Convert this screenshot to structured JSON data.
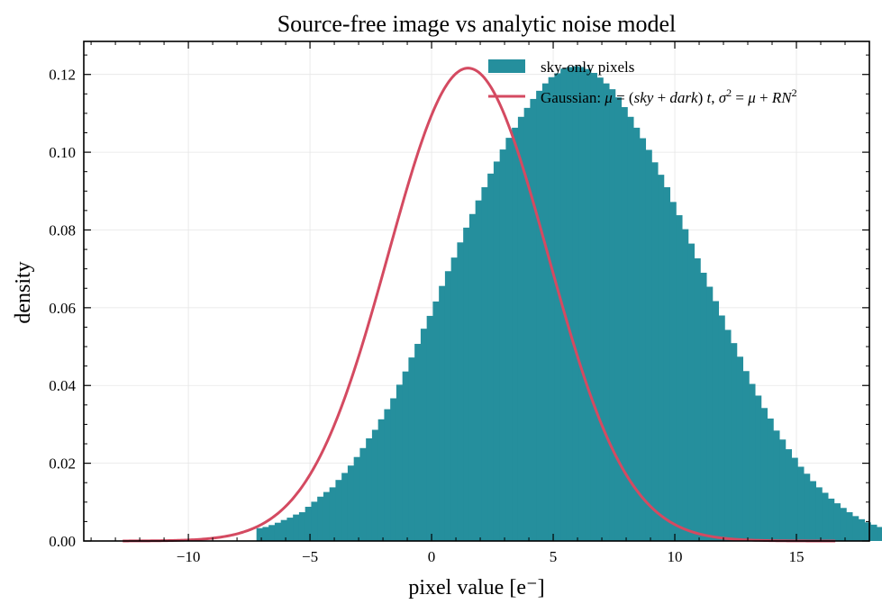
{
  "chart_data": {
    "type": "bar",
    "title": "Source-free image vs analytic noise model",
    "xlabel": "pixel value [e⁻]",
    "ylabel": "density",
    "xlim": [
      -14.3,
      18.0
    ],
    "ylim": [
      0,
      0.1285
    ],
    "xticks": [
      -10,
      -5,
      0,
      5,
      10,
      15
    ],
    "xtick_labels": [
      "−10",
      "−5",
      "0",
      "5",
      "10",
      "15"
    ],
    "yticks": [
      0.0,
      0.02,
      0.04,
      0.06,
      0.08,
      0.1,
      0.12
    ],
    "ytick_labels": [
      "0.00",
      "0.02",
      "0.04",
      "0.06",
      "0.08",
      "0.10",
      "0.12"
    ],
    "grid": true,
    "legend_position": "top-right",
    "colors": {
      "histogram": "#258f9d",
      "curve": "#d44a61"
    },
    "series": [
      {
        "name": "sky-only pixels",
        "kind": "histogram",
        "bin_start": -7.2,
        "bin_width": 0.25,
        "values": [
          0.0033,
          0.0036,
          0.0041,
          0.0047,
          0.0054,
          0.006,
          0.0068,
          0.0074,
          0.0088,
          0.0101,
          0.0114,
          0.0126,
          0.0138,
          0.0157,
          0.0175,
          0.0194,
          0.0216,
          0.0239,
          0.0264,
          0.0286,
          0.0313,
          0.0339,
          0.0367,
          0.0402,
          0.0436,
          0.0472,
          0.0507,
          0.0546,
          0.0579,
          0.0616,
          0.0656,
          0.0694,
          0.0729,
          0.0768,
          0.0806,
          0.0841,
          0.0876,
          0.091,
          0.0945,
          0.0976,
          0.1007,
          0.1037,
          0.1063,
          0.1091,
          0.1114,
          0.1137,
          0.1158,
          0.1177,
          0.1193,
          0.1203,
          0.1215,
          0.1219,
          0.1221,
          0.1219,
          0.1214,
          0.1204,
          0.1192,
          0.1177,
          0.1162,
          0.1141,
          0.1116,
          0.1091,
          0.1063,
          0.1036,
          0.1006,
          0.0974,
          0.0942,
          0.091,
          0.0872,
          0.0838,
          0.0802,
          0.0765,
          0.0727,
          0.069,
          0.0654,
          0.0617,
          0.058,
          0.0543,
          0.0509,
          0.0474,
          0.0437,
          0.0404,
          0.0374,
          0.0342,
          0.0315,
          0.0284,
          0.0261,
          0.0236,
          0.0214,
          0.0191,
          0.0173,
          0.0154,
          0.0138,
          0.0124,
          0.0109,
          0.0097,
          0.0085,
          0.0074,
          0.0064,
          0.0056,
          0.0048,
          0.0042,
          0.0036,
          0.003
        ]
      },
      {
        "name": "Gaussian: μ = (sky + dark) t, σ² = μ + RN²",
        "kind": "line",
        "mean": 1.5,
        "sigma": 3.28,
        "x_range": [
          -12.7,
          16.6
        ]
      }
    ]
  }
}
